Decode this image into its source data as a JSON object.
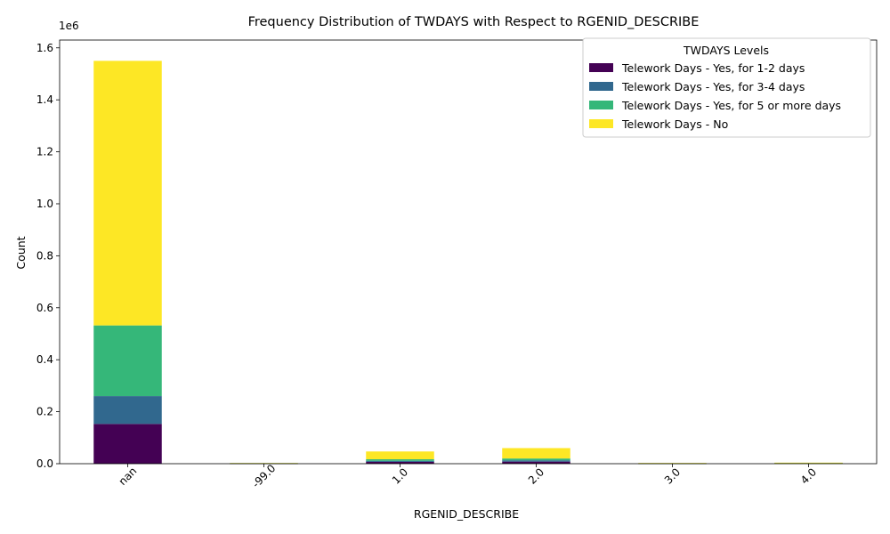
{
  "chart_data": {
    "type": "bar",
    "stacked": true,
    "title": "Frequency Distribution of TWDAYS with Respect to RGENID_DESCRIBE",
    "xlabel": "RGENID_DESCRIBE",
    "ylabel": "Count",
    "y_offset_text": "1e6",
    "y_scale": 1000000,
    "ylim": [
      0,
      1630000
    ],
    "yticks": [
      0,
      200000,
      400000,
      600000,
      800000,
      1000000,
      1200000,
      1400000,
      1600000
    ],
    "ytick_labels": [
      "0.0",
      "0.2",
      "0.4",
      "0.6",
      "0.8",
      "1.0",
      "1.2",
      "1.4",
      "1.6"
    ],
    "categories": [
      "nan",
      "-99.0",
      "1.0",
      "2.0",
      "3.0",
      "4.0"
    ],
    "grid": false,
    "legend": {
      "title": "TWDAYS Levels",
      "placement": "top-right"
    },
    "series": [
      {
        "name": "Telework Days - Yes, for 1-2 days",
        "color": "#440154",
        "values": [
          153000,
          500,
          7000,
          8000,
          500,
          2000
        ]
      },
      {
        "name": "Telework Days - Yes, for 3-4 days",
        "color": "#31688e",
        "values": [
          107000,
          500,
          4000,
          5000,
          300,
          500
        ]
      },
      {
        "name": "Telework Days - Yes, for 5 or more days",
        "color": "#35b779",
        "values": [
          272000,
          1000,
          6000,
          7000,
          500,
          500
        ]
      },
      {
        "name": "Telework Days - No",
        "color": "#fde725",
        "values": [
          1018000,
          500,
          30000,
          40000,
          1500,
          1000
        ]
      }
    ]
  }
}
